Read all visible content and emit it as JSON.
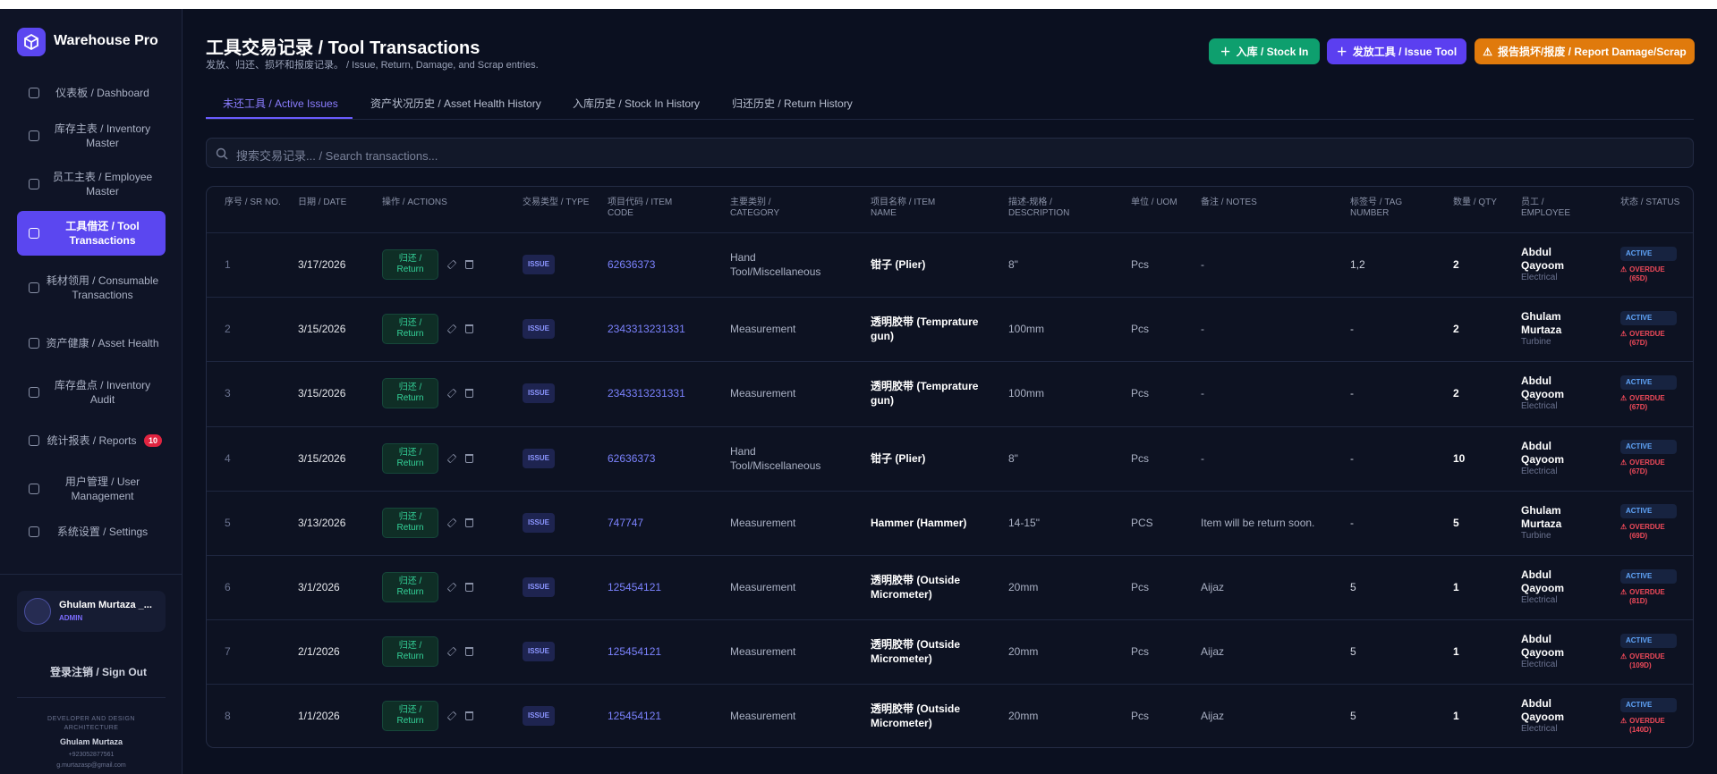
{
  "sidebar": {
    "brand": "Warehouse Pro",
    "nav": [
      {
        "label": "仪表板 / Dashboard"
      },
      {
        "label": "库存主表 / Inventory Master"
      },
      {
        "label": "员工主表 / Employee Master"
      },
      {
        "label": "工具借还 / Tool Transactions",
        "active": true
      },
      {
        "label": "耗材领用 / Consumable Transactions"
      },
      {
        "label": "资产健康 / Asset Health"
      },
      {
        "label": "库存盘点 / Inventory Audit"
      },
      {
        "label": "统计报表 / Reports",
        "badge": 10
      },
      {
        "label": "用户管理 / User Management"
      },
      {
        "label": "系统设置 / Settings"
      }
    ],
    "user": {
      "name": "Ghulam Murtaza _...",
      "role": "ADMIN"
    },
    "sign_out": "登录注销 / Sign Out",
    "footer": {
      "caption": "DEVELOPER AND DESIGN ARCHITECTURE",
      "name": "Ghulam Murtaza",
      "phone": "+923052877561",
      "email": "g.murtazasp@gmail.com"
    }
  },
  "header": {
    "title": "工具交易记录 / Tool Transactions",
    "subtitle": "发放、归还、损坏和报废记录。 / Issue, Return, Damage, and Scrap entries.",
    "buttons": [
      "入库 / Stock In",
      "发放工具 / Issue Tool",
      "报告损坏/报废 / Report Damage/Scrap"
    ]
  },
  "tabs": [
    "未还工具 / Active Issues",
    "资产状况历史 / Asset Health History",
    "入库历史 / Stock In History",
    "归还历史 / Return History"
  ],
  "search": {
    "placeholder": "搜索交易记录... / Search transactions..."
  },
  "table": {
    "columns": [
      "序号 / SR NO.",
      "日期 / DATE",
      "操作 / ACTIONS",
      "交易类型 / TYPE",
      "项目代码 / ITEM CODE",
      "主要类别 / CATEGORY",
      "项目名称 / ITEM NAME",
      "描述-规格 / DESCRIPTION",
      "单位 / UOM",
      "备注 / NOTES",
      "标签号 / TAG NUMBER",
      "数量 / QTY",
      "员工 / EMPLOYEE",
      "状态 / STATUS"
    ],
    "rows": [
      {
        "sr": 1,
        "date": "3/17/2026",
        "action": "归还 / Return",
        "type": "ISSUE",
        "code": "62636373",
        "category": "Hand Tool/Miscellaneous",
        "item": "钳子 (Plier)",
        "description": "8\"",
        "uom": "Pcs",
        "notes": "-",
        "tag": "1,2",
        "qty": 2,
        "employee": "Abdul Qayoom",
        "department": "Electrical",
        "status": "ACTIVE",
        "overdue": "OVERDUE (65D)"
      },
      {
        "sr": 2,
        "date": "3/15/2026",
        "action": "归还 / Return",
        "type": "ISSUE",
        "code": "2343313231331",
        "category": "Measurement",
        "item": "透明胶带 (Temprature gun)",
        "description": "100mm",
        "uom": "Pcs",
        "notes": "-",
        "tag": "-",
        "qty": 2,
        "employee": "Ghulam Murtaza",
        "department": "Turbine",
        "status": "ACTIVE",
        "overdue": "OVERDUE (67D)"
      },
      {
        "sr": 3,
        "date": "3/15/2026",
        "action": "归还 / Return",
        "type": "ISSUE",
        "code": "2343313231331",
        "category": "Measurement",
        "item": "透明胶带 (Temprature gun)",
        "description": "100mm",
        "uom": "Pcs",
        "notes": "-",
        "tag": "-",
        "qty": 2,
        "employee": "Abdul Qayoom",
        "department": "Electrical",
        "status": "ACTIVE",
        "overdue": "OVERDUE (67D)"
      },
      {
        "sr": 4,
        "date": "3/15/2026",
        "action": "归还 / Return",
        "type": "ISSUE",
        "code": "62636373",
        "category": "Hand Tool/Miscellaneous",
        "item": "钳子 (Plier)",
        "description": "8\"",
        "uom": "Pcs",
        "notes": "-",
        "tag": "-",
        "qty": 10,
        "employee": "Abdul Qayoom",
        "department": "Electrical",
        "status": "ACTIVE",
        "overdue": "OVERDUE (67D)"
      },
      {
        "sr": 5,
        "date": "3/13/2026",
        "action": "归还 / Return",
        "type": "ISSUE",
        "code": "747747",
        "category": "Measurement",
        "item": "Hammer (Hammer)",
        "description": "14-15\"",
        "uom": "PCS",
        "notes": "Item will be return soon.",
        "tag": "-",
        "qty": 5,
        "employee": "Ghulam Murtaza",
        "department": "Turbine",
        "status": "ACTIVE",
        "overdue": "OVERDUE (69D)"
      },
      {
        "sr": 6,
        "date": "3/1/2026",
        "action": "归还 / Return",
        "type": "ISSUE",
        "code": "125454121",
        "category": "Measurement",
        "item": "透明胶带 (Outside Micrometer)",
        "description": "20mm",
        "uom": "Pcs",
        "notes": "Aijaz",
        "tag": "5",
        "qty": 1,
        "employee": "Abdul Qayoom",
        "department": "Electrical",
        "status": "ACTIVE",
        "overdue": "OVERDUE (81D)"
      },
      {
        "sr": 7,
        "date": "2/1/2026",
        "action": "归还 / Return",
        "type": "ISSUE",
        "code": "125454121",
        "category": "Measurement",
        "item": "透明胶带 (Outside Micrometer)",
        "description": "20mm",
        "uom": "Pcs",
        "notes": "Aijaz",
        "tag": "5",
        "qty": 1,
        "employee": "Abdul Qayoom",
        "department": "Electrical",
        "status": "ACTIVE",
        "overdue": "OVERDUE (109D)"
      },
      {
        "sr": 8,
        "date": "1/1/2026",
        "action": "归还 / Return",
        "type": "ISSUE",
        "code": "125454121",
        "category": "Measurement",
        "item": "透明胶带 (Outside Micrometer)",
        "description": "20mm",
        "uom": "Pcs",
        "notes": "Aijaz",
        "tag": "5",
        "qty": 1,
        "employee": "Abdul Qayoom",
        "department": "Electrical",
        "status": "ACTIVE",
        "overdue": "OVERDUE (140D)"
      }
    ]
  }
}
